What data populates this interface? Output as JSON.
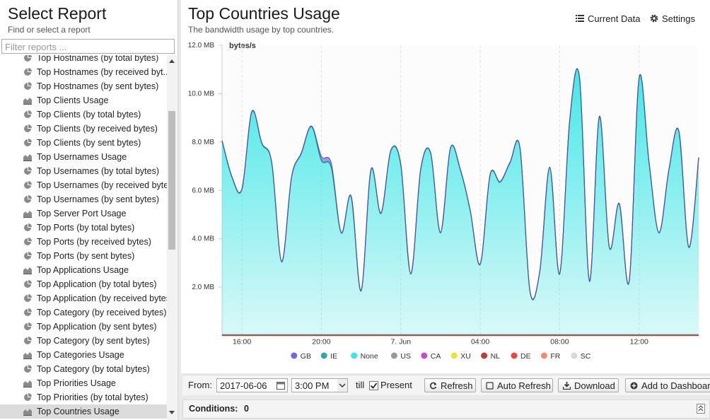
{
  "sidebar": {
    "title": "Select Report",
    "subtitle": "Find or select a report",
    "filter_placeholder": "Filter reports ...",
    "selected": 25,
    "items": [
      {
        "label": "Top Hostnames (by total bytes)",
        "icon": "pie"
      },
      {
        "label": "Top Hostnames (by received byt...",
        "icon": "pie"
      },
      {
        "label": "Top Hostnames (by sent bytes)",
        "icon": "pie"
      },
      {
        "label": "Top Clients Usage",
        "icon": "area"
      },
      {
        "label": "Top Clients (by total bytes)",
        "icon": "pie"
      },
      {
        "label": "Top Clients (by received bytes)",
        "icon": "pie"
      },
      {
        "label": "Top Clients (by sent bytes)",
        "icon": "pie"
      },
      {
        "label": "Top Usernames Usage",
        "icon": "area"
      },
      {
        "label": "Top Usernames (by total bytes)",
        "icon": "pie"
      },
      {
        "label": "Top Usernames (by received bytes)",
        "icon": "pie"
      },
      {
        "label": "Top Usernames (by sent bytes)",
        "icon": "pie"
      },
      {
        "label": "Top Server Port Usage",
        "icon": "area"
      },
      {
        "label": "Top Ports (by total bytes)",
        "icon": "pie"
      },
      {
        "label": "Top Ports (by received bytes)",
        "icon": "pie"
      },
      {
        "label": "Top Ports (by sent bytes)",
        "icon": "pie"
      },
      {
        "label": "Top Applications Usage",
        "icon": "area"
      },
      {
        "label": "Top Application (by total bytes)",
        "icon": "pie"
      },
      {
        "label": "Top Application (by received bytes)",
        "icon": "pie"
      },
      {
        "label": "Top Category (by received bytes)",
        "icon": "pie"
      },
      {
        "label": "Top Application (by sent bytes)",
        "icon": "pie"
      },
      {
        "label": "Top Category (by sent bytes)",
        "icon": "pie"
      },
      {
        "label": "Top Categories Usage",
        "icon": "area"
      },
      {
        "label": "Top Category (by total bytes)",
        "icon": "pie"
      },
      {
        "label": "Top Priorities Usage",
        "icon": "area"
      },
      {
        "label": "Top Priorities (by total bytes)",
        "icon": "pie"
      },
      {
        "label": "Top Countries Usage",
        "icon": "area"
      }
    ]
  },
  "header": {
    "title": "Top Countries Usage",
    "subtitle": "The bandwidth usage by top countries.",
    "actions": [
      "Current Data",
      "Settings"
    ]
  },
  "chart_data": {
    "type": "stacked_area",
    "y_label": "bytes/s",
    "ylim": [
      0,
      12
    ],
    "yticks": [
      {
        "value": 2,
        "label": "2.0 MB"
      },
      {
        "value": 4,
        "label": "4.0 MB"
      },
      {
        "value": 6,
        "label": "6.0 MB"
      },
      {
        "value": 8,
        "label": "8.0 MB"
      },
      {
        "value": 10,
        "label": "10.0 MB"
      },
      {
        "value": 12,
        "label": "12.0 MB"
      }
    ],
    "grid": true,
    "legend": "bottom",
    "categories": [
      null,
      null,
      "16:00",
      null,
      null,
      null,
      null,
      null,
      null,
      null,
      "20:00",
      null,
      null,
      null,
      null,
      null,
      null,
      null,
      "7. Jun",
      null,
      null,
      null,
      null,
      null,
      null,
      null,
      "04:00",
      null,
      null,
      null,
      null,
      null,
      null,
      null,
      "08:00",
      null,
      null,
      null,
      null,
      null,
      null,
      null,
      "12:00",
      null,
      null,
      null,
      null,
      null,
      null
    ],
    "series": [
      {
        "name": "GB",
        "color": "#6b6bdc",
        "values": [
          0,
          0,
          0,
          0,
          0,
          0,
          0,
          0,
          0,
          0,
          0.15,
          0.15,
          0,
          0,
          0,
          0,
          0,
          0,
          0,
          0,
          0,
          0,
          0,
          0,
          0,
          0,
          0,
          0,
          0,
          0,
          0,
          0,
          0,
          0,
          0,
          0,
          0,
          0,
          0,
          0,
          0,
          0,
          0,
          0,
          0,
          0,
          0,
          0,
          0
        ]
      },
      {
        "name": "IE",
        "color": "#3aa3a3",
        "values": [
          0.03,
          0.03,
          0.03,
          0.03,
          0.03,
          0.03,
          0.03,
          0.03,
          0.03,
          0.03,
          0.03,
          0.03,
          0.03,
          0.03,
          0.03,
          0.03,
          0.03,
          0.03,
          0.03,
          0.03,
          0.03,
          0.03,
          0.03,
          0.03,
          0.03,
          0.03,
          0.03,
          0.03,
          0.03,
          0.03,
          0.03,
          0.03,
          0.03,
          0.03,
          0.03,
          0.03,
          0.03,
          0.03,
          0.03,
          0.03,
          0.03,
          0.03,
          0.03,
          0.03,
          0.03,
          0.03,
          0.03,
          0.03,
          0.03
        ]
      },
      {
        "name": "None",
        "color": "#3de6e6",
        "values": [
          8.0,
          6.5,
          6.0,
          9.2,
          7.9,
          7.1,
          3.0,
          6.5,
          7.5,
          8.6,
          7.2,
          6.9,
          4.2,
          5.7,
          1.8,
          6.8,
          5.0,
          7.6,
          7.0,
          2.5,
          6.8,
          7.5,
          4.2,
          7.7,
          6.8,
          5.1,
          2.9,
          6.6,
          6.3,
          7.1,
          7.7,
          1.8,
          2.6,
          6.9,
          2.5,
          8.8,
          10.6,
          2.2,
          9.0,
          3.6,
          5.4,
          2.2,
          10.6,
          7.1,
          4.2,
          6.8,
          8.4,
          3.6,
          7.3
        ]
      },
      {
        "name": "US",
        "color": "#999999",
        "values": [
          0,
          0,
          0,
          0,
          0,
          0,
          0,
          0,
          0,
          0,
          0,
          0,
          0,
          0,
          0,
          0,
          0,
          0,
          0,
          0,
          0,
          0,
          0,
          0,
          0,
          0,
          0,
          0,
          0,
          0,
          0,
          0,
          0,
          0,
          0,
          0,
          0,
          0,
          0,
          0,
          0,
          0,
          0,
          0,
          0,
          0,
          0,
          0,
          0
        ]
      },
      {
        "name": "CA",
        "color": "#c94ac9",
        "values": [
          0,
          0,
          0,
          0,
          0,
          0,
          0,
          0,
          0,
          0,
          0,
          0,
          0,
          0,
          0,
          0,
          0,
          0,
          0,
          0,
          0,
          0,
          0,
          0,
          0,
          0,
          0,
          0,
          0,
          0,
          0,
          0,
          0,
          0,
          0,
          0,
          0,
          0,
          0,
          0,
          0,
          0,
          0,
          0,
          0,
          0,
          0,
          0,
          0
        ]
      },
      {
        "name": "XU",
        "color": "#e6e632",
        "values": [
          0,
          0,
          0,
          0,
          0,
          0,
          0,
          0,
          0,
          0,
          0,
          0,
          0,
          0,
          0,
          0,
          0,
          0,
          0,
          0,
          0,
          0,
          0,
          0,
          0,
          0,
          0,
          0,
          0,
          0,
          0,
          0,
          0,
          0,
          0,
          0,
          0,
          0,
          0,
          0,
          0,
          0,
          0,
          0,
          0,
          0,
          0,
          0,
          0
        ]
      },
      {
        "name": "NL",
        "color": "#b8403a",
        "values": [
          0.03,
          0.03,
          0.03,
          0.03,
          0.03,
          0.03,
          0.03,
          0.03,
          0.03,
          0.03,
          0.03,
          0.03,
          0.03,
          0.03,
          0.03,
          0.03,
          0.03,
          0.03,
          0.03,
          0.03,
          0.03,
          0.03,
          0.03,
          0.03,
          0.03,
          0.03,
          0.03,
          0.03,
          0.03,
          0.03,
          0.03,
          0.03,
          0.03,
          0.03,
          0.03,
          0.03,
          0.03,
          0.03,
          0.03,
          0.03,
          0.03,
          0.03,
          0.03,
          0.03,
          0.03,
          0.03,
          0.03,
          0.03,
          0.03
        ]
      },
      {
        "name": "DE",
        "color": "#e84545",
        "values": [
          0,
          0,
          0,
          0,
          0,
          0,
          0,
          0,
          0,
          0,
          0,
          0,
          0,
          0,
          0,
          0,
          0,
          0,
          0,
          0,
          0,
          0,
          0,
          0,
          0,
          0,
          0,
          0,
          0,
          0,
          0,
          0,
          0,
          0,
          0,
          0,
          0,
          0,
          0,
          0,
          0,
          0,
          0,
          0,
          0,
          0,
          0,
          0,
          0
        ]
      },
      {
        "name": "FR",
        "color": "#ef8c74",
        "values": [
          0,
          0,
          0,
          0,
          0,
          0,
          0,
          0,
          0,
          0,
          0,
          0,
          0,
          0,
          0,
          0,
          0,
          0,
          0,
          0,
          0,
          0,
          0,
          0,
          0,
          0,
          0,
          0,
          0,
          0,
          0,
          0,
          0,
          0,
          0,
          0,
          0,
          0,
          0,
          0,
          0,
          0,
          0,
          0,
          0,
          0,
          0,
          0,
          0
        ]
      },
      {
        "name": "SC",
        "color": "#d8d8d8",
        "values": [
          0,
          0,
          0,
          0,
          0,
          0,
          0,
          0,
          0,
          0,
          0,
          0,
          0,
          0,
          0,
          0,
          0,
          0,
          0,
          0,
          0,
          0,
          0,
          0,
          0,
          0,
          0,
          0,
          0,
          0,
          0,
          0,
          0,
          0,
          0,
          0,
          0,
          0,
          0,
          0,
          0,
          0,
          0,
          0,
          0,
          0,
          0,
          0,
          0
        ]
      }
    ]
  },
  "toolbar": {
    "from_label": "From:",
    "date": "2017-06-06",
    "time": "3:00 PM",
    "till_label": "till",
    "present_label": "Present",
    "present_checked": true,
    "buttons": [
      "Refresh",
      "Auto Refresh",
      "Download",
      "Add to Dashboard"
    ]
  },
  "conditions": {
    "label": "Conditions:",
    "count": 0
  }
}
